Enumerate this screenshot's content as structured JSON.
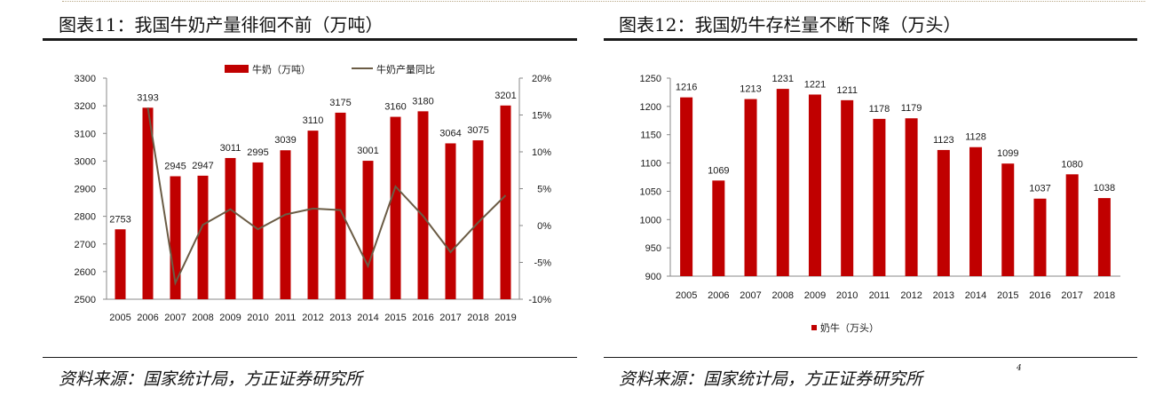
{
  "charts": [
    {
      "title": "图表11：我国牛奶产量徘徊不前（万吨）",
      "source": "资料来源：国家统计局，方正证券研究所",
      "legend": {
        "bar": "牛奶（万吨）",
        "line": "牛奶产量同比"
      }
    },
    {
      "title": "图表12：我国奶牛存栏量不断下降（万头）",
      "source": "资料来源：国家统计局，方正证券研究所",
      "page_number": "4",
      "legend": {
        "bar": "奶牛（万头）"
      }
    }
  ],
  "colors": {
    "bar": "#c00000",
    "line": "#6b5c45",
    "rule": "#1a1a1a"
  },
  "chart_data": [
    {
      "type": "bar",
      "categories": [
        "2005",
        "2006",
        "2007",
        "2008",
        "2009",
        "2010",
        "2011",
        "2012",
        "2013",
        "2014",
        "2015",
        "2016",
        "2017",
        "2018",
        "2019"
      ],
      "series": [
        {
          "name": "牛奶（万吨）",
          "type": "bar",
          "axis": "left",
          "values": [
            2753,
            3193,
            2945,
            2947,
            3011,
            2995,
            3039,
            3110,
            3175,
            3001,
            3160,
            3180,
            3064,
            3075,
            3201
          ]
        },
        {
          "name": "牛奶产量同比",
          "type": "line",
          "axis": "right",
          "unit": "%",
          "values": [
            null,
            16.0,
            -7.8,
            0.1,
            2.2,
            -0.5,
            1.5,
            2.3,
            2.1,
            -5.5,
            5.3,
            1.3,
            -3.6,
            0.4,
            4.1
          ]
        }
      ],
      "ylim": [
        2500,
        3300
      ],
      "yticks": [
        2500,
        2600,
        2700,
        2800,
        2900,
        3000,
        3100,
        3200,
        3300
      ],
      "y2lim": [
        -10,
        20
      ],
      "y2ticks": [
        "-10%",
        "-5%",
        "0%",
        "5%",
        "10%",
        "15%",
        "20%"
      ],
      "data_labels": true,
      "legend_position": "top",
      "grid": false
    },
    {
      "type": "bar",
      "categories": [
        "2005",
        "2006",
        "2007",
        "2008",
        "2009",
        "2010",
        "2011",
        "2012",
        "2013",
        "2014",
        "2015",
        "2016",
        "2017",
        "2018"
      ],
      "series": [
        {
          "name": "奶牛（万头）",
          "values": [
            1216,
            1069,
            1213,
            1231,
            1221,
            1211,
            1178,
            1179,
            1123,
            1128,
            1099,
            1037,
            1080,
            1038
          ]
        }
      ],
      "ylim": [
        900,
        1250
      ],
      "yticks": [
        900,
        950,
        1000,
        1050,
        1100,
        1150,
        1200,
        1250
      ],
      "data_labels": true,
      "legend_position": "bottom",
      "grid": false
    }
  ]
}
